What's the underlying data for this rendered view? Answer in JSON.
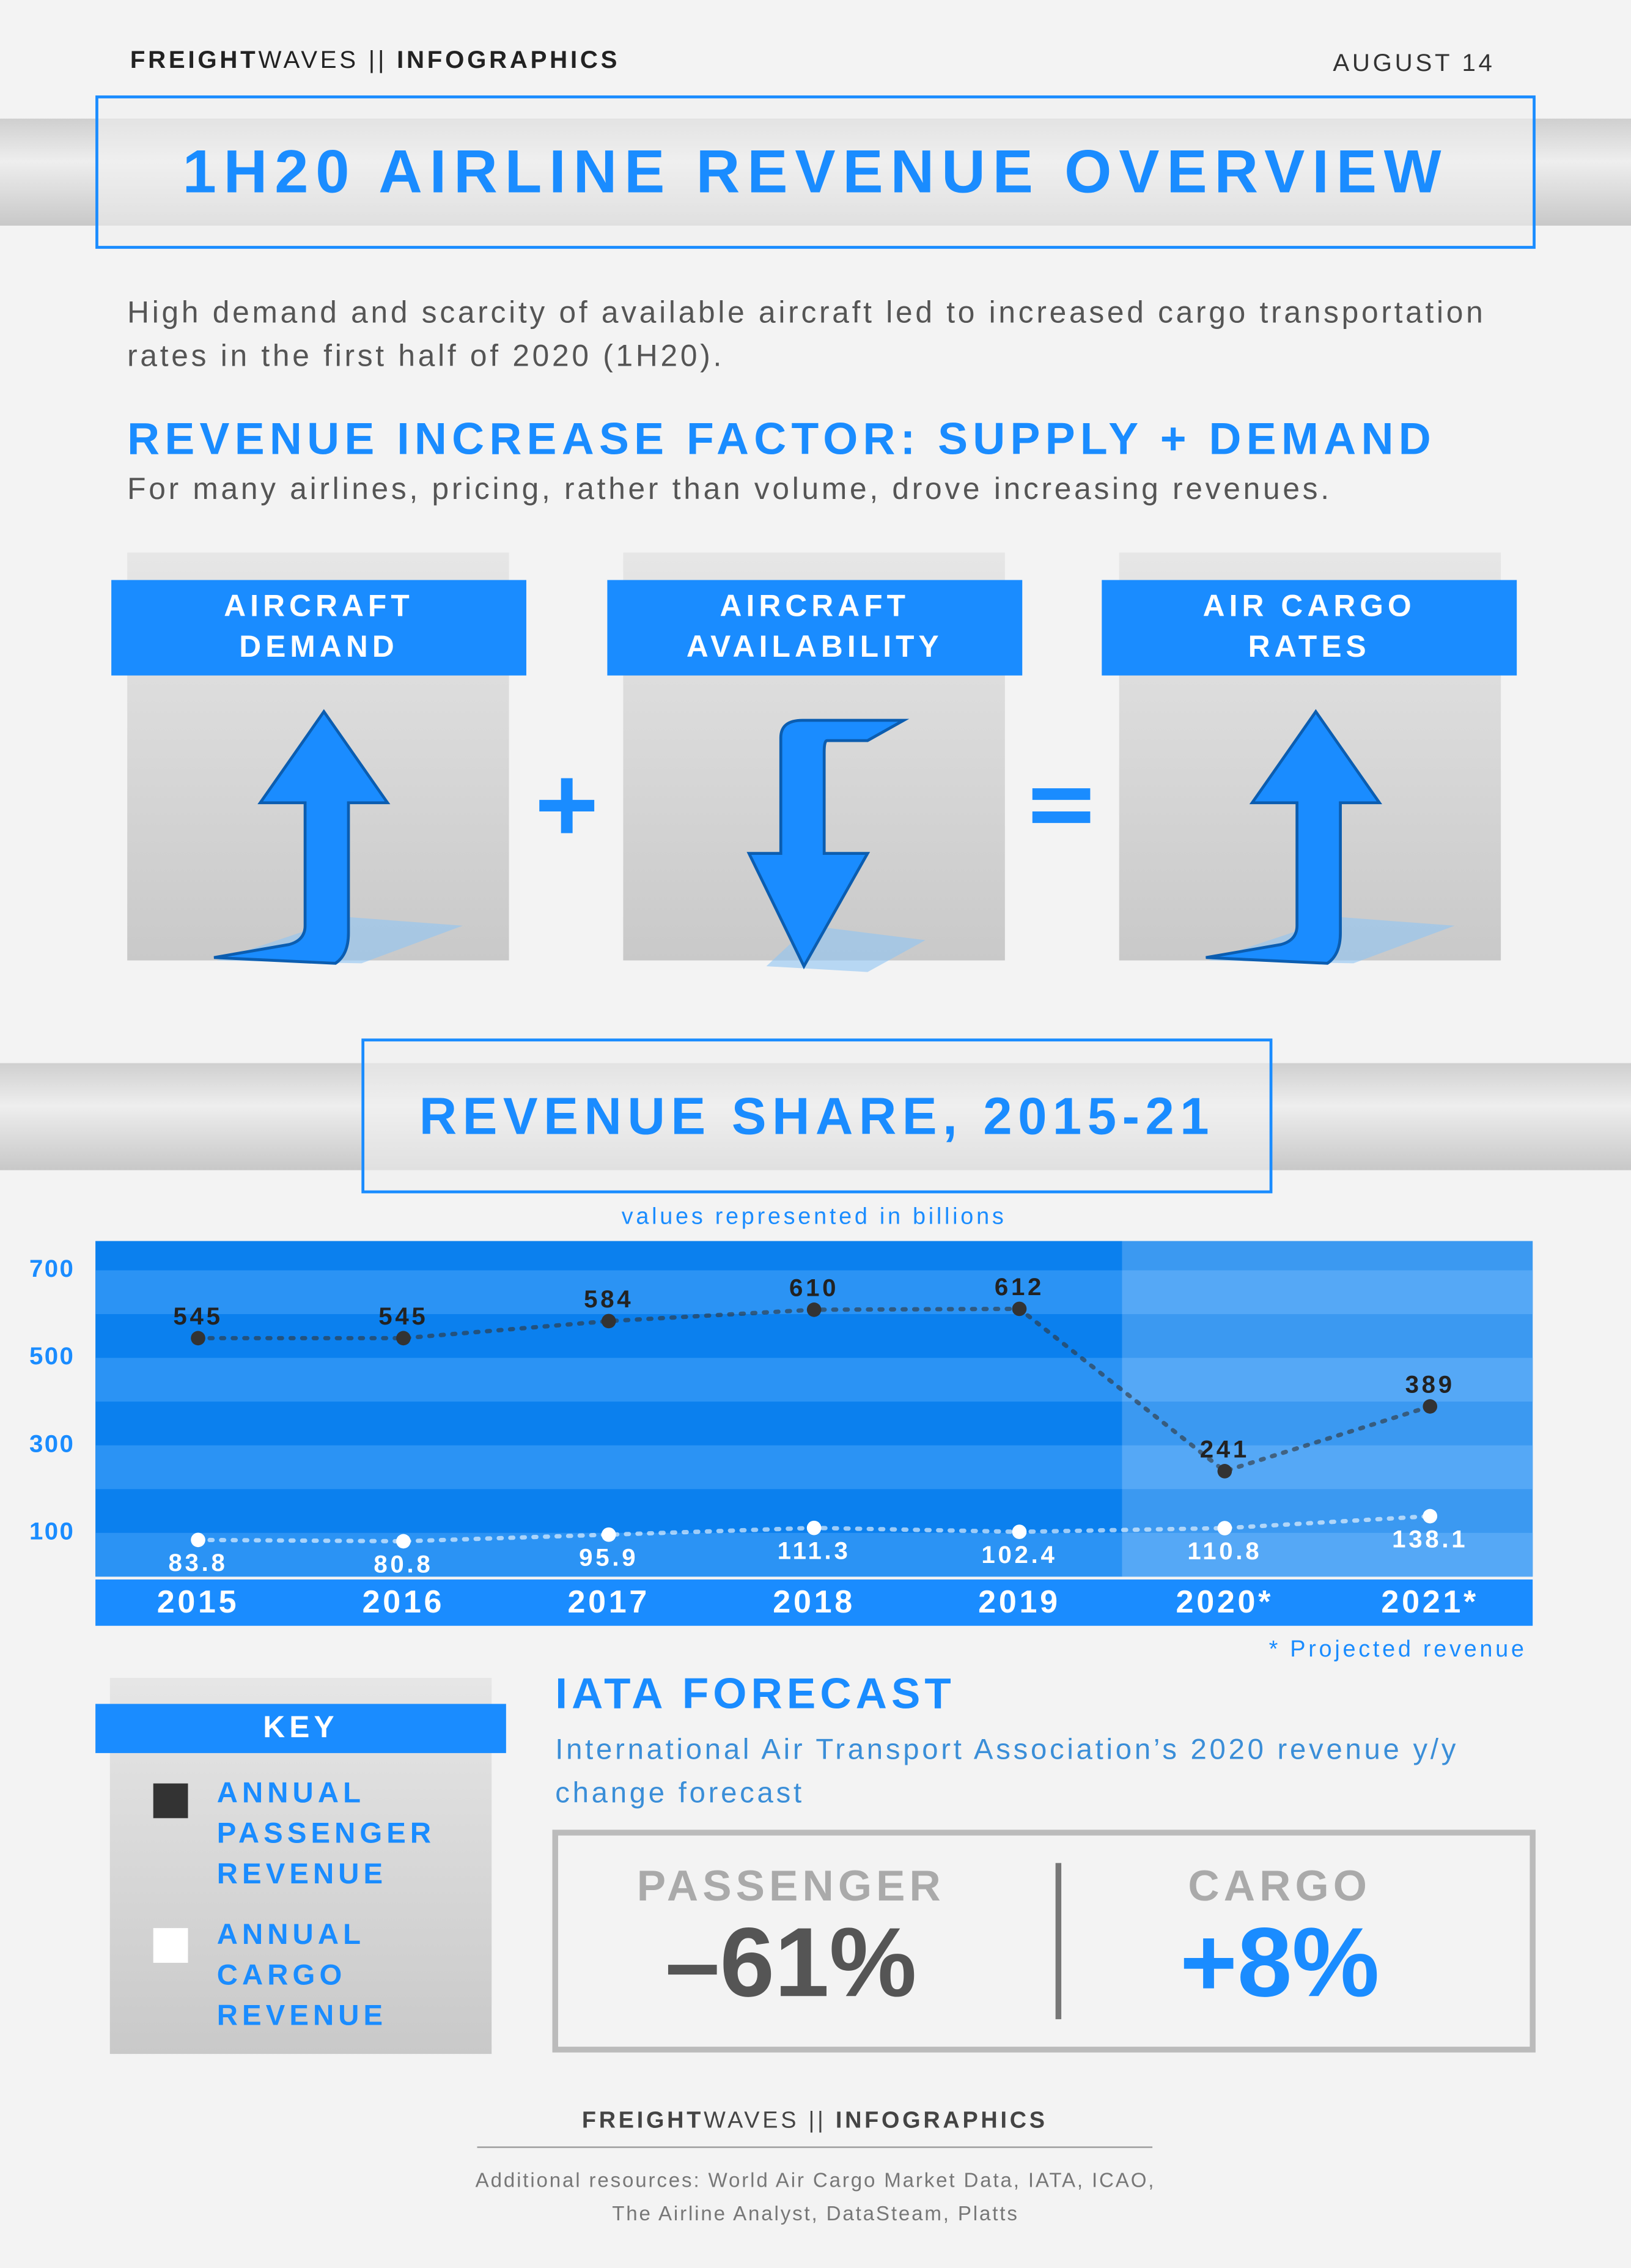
{
  "header": {
    "brand_bold": "FREIGHT",
    "brand_light": "WAVES",
    "separator": "||",
    "section": "INFOGRAPHICS",
    "date": "AUGUST 14"
  },
  "title": "1H20 AIRLINE REVENUE OVERVIEW",
  "intro": "High demand and scarcity of available aircraft led to increased cargo transportation rates in the first half of 2020 (1H20).",
  "factors": {
    "heading": "REVENUE INCREASE FACTOR: SUPPLY + DEMAND",
    "subheading": "For many airlines, pricing, rather than volume, drove increasing revenues.",
    "items": [
      "AIRCRAFT DEMAND",
      "AIRCRAFT AVAILABILITY",
      "AIR CARGO RATES"
    ]
  },
  "chart_data": {
    "type": "line",
    "title": "REVENUE SHARE, 2015-21",
    "subtitle": "values represented in billions",
    "note": "* Projected revenue",
    "categories": [
      "2015",
      "2016",
      "2017",
      "2018",
      "2019",
      "2020*",
      "2021*"
    ],
    "series": [
      {
        "name": "ANNUAL PASSENGER REVENUE",
        "color": "#333333",
        "values": [
          545,
          545,
          584,
          610,
          612,
          241,
          389
        ]
      },
      {
        "name": "ANNUAL CARGO REVENUE",
        "color": "#ffffff",
        "values": [
          83.8,
          80.8,
          95.9,
          111.3,
          102.4,
          110.8,
          138.1
        ]
      }
    ],
    "ylim": [
      0,
      767
    ],
    "yticks": [
      100,
      300,
      500,
      700
    ],
    "legend_title": "KEY"
  },
  "forecast": {
    "heading": "IATA FORECAST",
    "description": "International Air Transport Association’s 2020 revenue y/y change forecast",
    "items": [
      {
        "label": "PASSENGER",
        "value": "–61%"
      },
      {
        "label": "CARGO",
        "value": "+8%"
      }
    ]
  },
  "footer": {
    "brand_bold": "FREIGHT",
    "brand_light": "WAVES",
    "separator": "||",
    "section": "INFOGRAPHICS",
    "resources": "Additional resources: World Air Cargo Market Data, IATA, ICAO, The Airline Analyst, DataSteam, Platts"
  }
}
